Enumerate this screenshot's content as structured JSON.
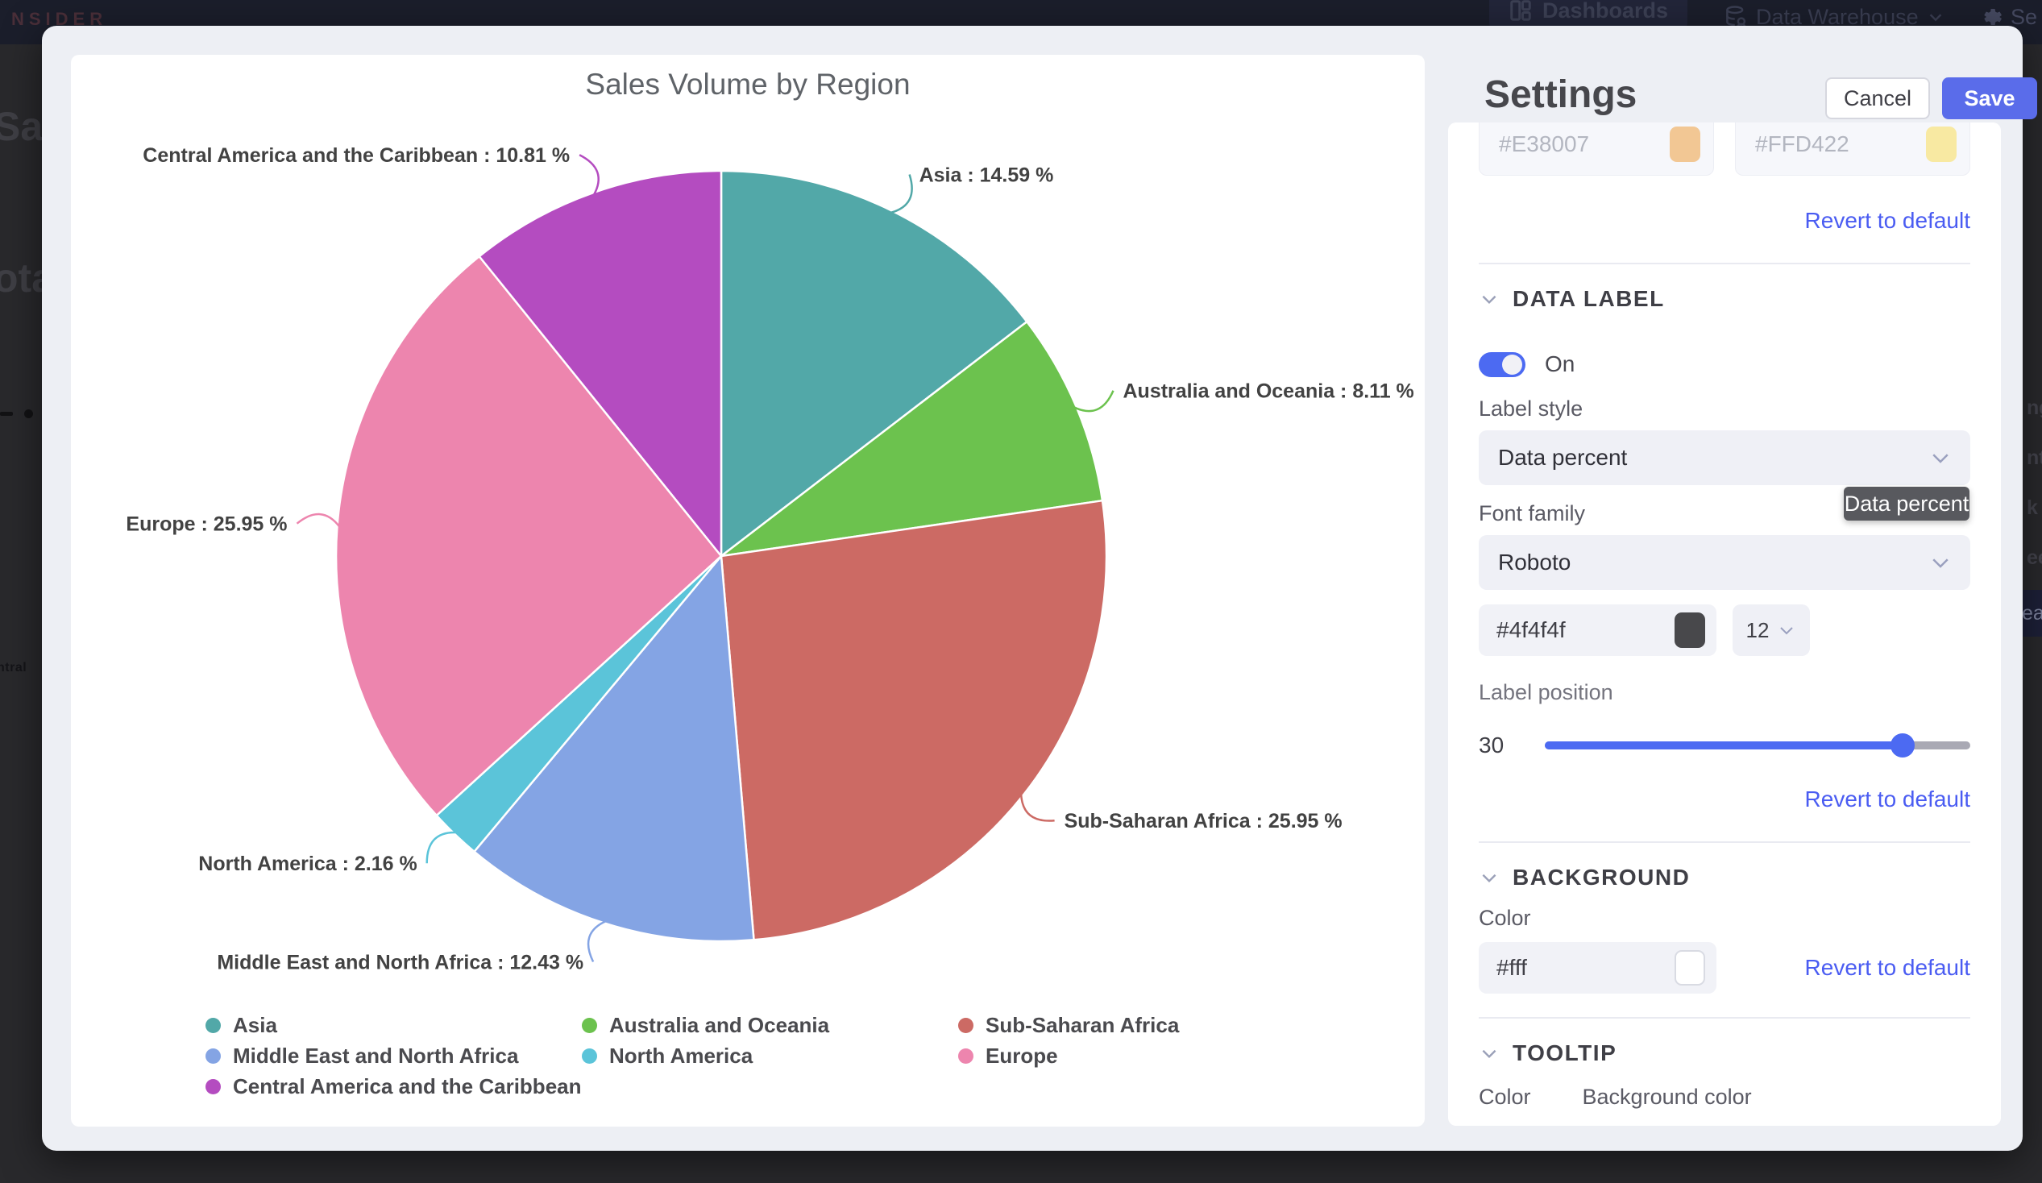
{
  "app": {
    "brand_fragment": "NSIDER",
    "nav": {
      "dashboards": "Dashboards",
      "data_warehouse": "Data Warehouse",
      "settings_partial": "Se"
    }
  },
  "background_fragments": {
    "left": [
      "Sal",
      "ota",
      "ntral"
    ],
    "right": [
      "nge",
      "nth",
      "k D",
      "eek",
      "ear"
    ]
  },
  "chart_data": {
    "type": "pie",
    "title": "Sales Volume by Region",
    "label_format": "{name} : {value} %",
    "legend_position": "bottom",
    "slices": [
      {
        "name": "Asia",
        "value": 14.59,
        "color": "#52a8a8"
      },
      {
        "name": "Australia and Oceania",
        "value": 8.11,
        "color": "#6cc24e"
      },
      {
        "name": "Sub-Saharan Africa",
        "value": 25.95,
        "color": "#cc6a64"
      },
      {
        "name": "Middle East and North Africa",
        "value": 12.43,
        "color": "#84a4e4"
      },
      {
        "name": "North America",
        "value": 2.16,
        "color": "#5bc4d9"
      },
      {
        "name": "Europe",
        "value": 25.95,
        "color": "#ed85ae"
      },
      {
        "name": "Central America and the Caribbean",
        "value": 10.81,
        "color": "#b44cc0"
      }
    ]
  },
  "settings": {
    "title": "Settings",
    "cancel_label": "Cancel",
    "save_label": "Save",
    "revert_label": "Revert to default",
    "accent_color": "#4c6af2",
    "color_inputs": [
      {
        "value": "#E38007",
        "swatch": "#f2c794"
      },
      {
        "value": "#FFD422",
        "swatch": "#f8e9a2"
      }
    ],
    "data_label": {
      "heading": "DATA LABEL",
      "toggle_label": "On",
      "label_style_label": "Label style",
      "label_style_value": "Data percent",
      "style_tooltip": "Data percent",
      "font_family_label": "Font family",
      "font_family_value": "Roboto",
      "font_color_value": "#4f4f4f",
      "font_color_swatch": "#48484b",
      "font_size_value": "12",
      "label_position_label": "Label position",
      "label_position_value": "30",
      "label_position_percent": 84
    },
    "background": {
      "heading": "BACKGROUND",
      "color_label": "Color",
      "color_value": "#fff",
      "color_swatch": "#ffffff"
    },
    "tooltip": {
      "heading": "TOOLTIP",
      "color_label": "Color",
      "background_color_label": "Background color"
    }
  }
}
